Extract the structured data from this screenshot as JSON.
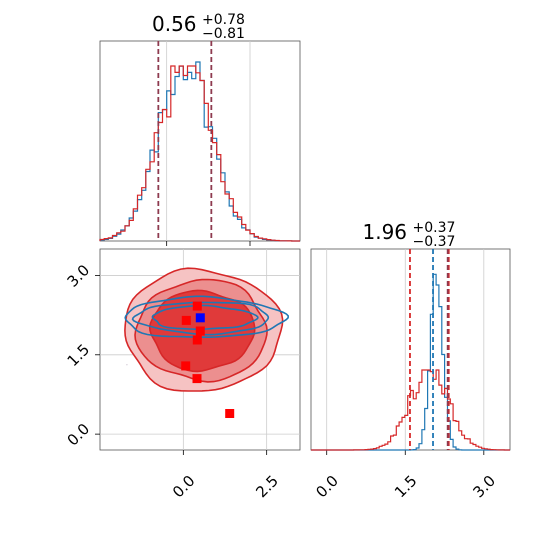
{
  "chart_data": {
    "type": "corner",
    "colors": {
      "red": "#d62728",
      "blue": "#1f77b4",
      "point_red": "#ff0000",
      "point_blue": "#0000ff",
      "grid": "#cccccc"
    },
    "panels": [
      {
        "id": "param1-hist",
        "type": "histogram",
        "title": {
          "value": "0.56",
          "upper": "+0.78",
          "lower": "−0.81"
        },
        "xlim": [
          -2.0,
          4.0
        ],
        "xgrid": [
          0.0,
          2.5
        ],
        "series": [
          {
            "name": "",
            "color": "#d62728",
            "mean": 0.56,
            "sd": 0.8,
            "quantile_lines": [
              -0.25,
              0.56,
              1.34
            ]
          },
          {
            "name": "",
            "color": "#1f77b4",
            "mean": 0.56,
            "sd": 0.78,
            "quantile_lines": [
              -0.25,
              1.34
            ]
          }
        ]
      },
      {
        "id": "param2-hist",
        "type": "histogram",
        "title": {
          "value": "1.96",
          "upper": "+0.37",
          "lower": "−0.37"
        },
        "xlim": [
          -0.3,
          3.5
        ],
        "xticks": [
          "0.0",
          "1.5",
          "3.0"
        ],
        "xtick_values": [
          0.0,
          1.5,
          3.0
        ],
        "series": [
          {
            "name": "",
            "color": "#d62728",
            "mean": 1.96,
            "sd": 0.37,
            "quantile_lines": [
              1.59,
              1.96,
              2.33
            ]
          },
          {
            "name": "",
            "color": "#1f77b4",
            "mean": 2.1,
            "sd": 0.12,
            "quantile_lines": [
              2.03,
              2.31
            ]
          }
        ]
      },
      {
        "id": "joint",
        "type": "contour",
        "xlim": [
          -2.5,
          3.5
        ],
        "ylim": [
          -0.3,
          3.5
        ],
        "xticks": [
          "0.0",
          "2.5"
        ],
        "xtick_values": [
          0.0,
          2.5
        ],
        "yticks": [
          "0.0",
          "1.5",
          "3.0"
        ],
        "ytick_values": [
          0.0,
          1.5,
          3.0
        ],
        "red_center": [
          0.56,
          1.96
        ],
        "red_levels": [
          [
            1.55,
            0.75
          ],
          [
            1.95,
            0.95
          ],
          [
            2.35,
            1.15
          ]
        ],
        "blue_center": [
          0.6,
          2.2
        ],
        "blue_levels": [
          [
            1.55,
            0.22
          ],
          [
            2.0,
            0.3
          ],
          [
            2.4,
            0.38
          ]
        ],
        "red_points": [
          [
            0.42,
            2.42
          ],
          [
            0.09,
            2.15
          ],
          [
            0.51,
            1.95
          ],
          [
            0.07,
            1.29
          ],
          [
            0.41,
            1.05
          ],
          [
            1.39,
            0.39
          ],
          [
            0.42,
            1.78
          ]
        ],
        "blue_points": [
          [
            0.51,
            2.2
          ]
        ]
      }
    ]
  }
}
